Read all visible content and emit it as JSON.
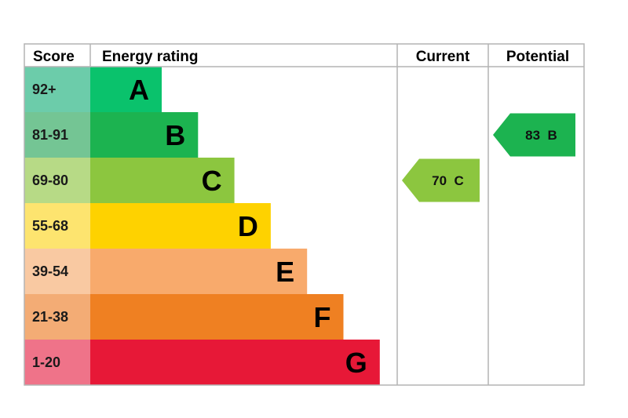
{
  "headers": {
    "score": "Score",
    "energy_rating": "Energy rating",
    "current": "Current",
    "potential": "Potential"
  },
  "chart_data": {
    "type": "bar",
    "bands": [
      {
        "letter": "A",
        "range": "92+",
        "min": 92,
        "max": 100,
        "color": "#0ac26c",
        "score_bg": "#6cccaa"
      },
      {
        "letter": "B",
        "range": "81-91",
        "min": 81,
        "max": 91,
        "color": "#1cb350",
        "score_bg": "#74c594"
      },
      {
        "letter": "C",
        "range": "69-80",
        "min": 69,
        "max": 80,
        "color": "#8cc63f",
        "score_bg": "#b7da86"
      },
      {
        "letter": "D",
        "range": "55-68",
        "min": 55,
        "max": 68,
        "color": "#fed200",
        "score_bg": "#fde46f"
      },
      {
        "letter": "E",
        "range": "39-54",
        "min": 39,
        "max": 54,
        "color": "#f8aa6c",
        "score_bg": "#f9c9a2"
      },
      {
        "letter": "F",
        "range": "21-38",
        "min": 21,
        "max": 38,
        "color": "#ef8022",
        "score_bg": "#f3ac75"
      },
      {
        "letter": "G",
        "range": "1-20",
        "min": 1,
        "max": 20,
        "color": "#e71837",
        "score_bg": "#ef7389"
      }
    ],
    "current": {
      "value": 70,
      "band": "C",
      "label": "70  C",
      "color": "#8cc63f"
    },
    "potential": {
      "value": 83,
      "band": "B",
      "label": "83  B",
      "color": "#1cb350"
    }
  }
}
